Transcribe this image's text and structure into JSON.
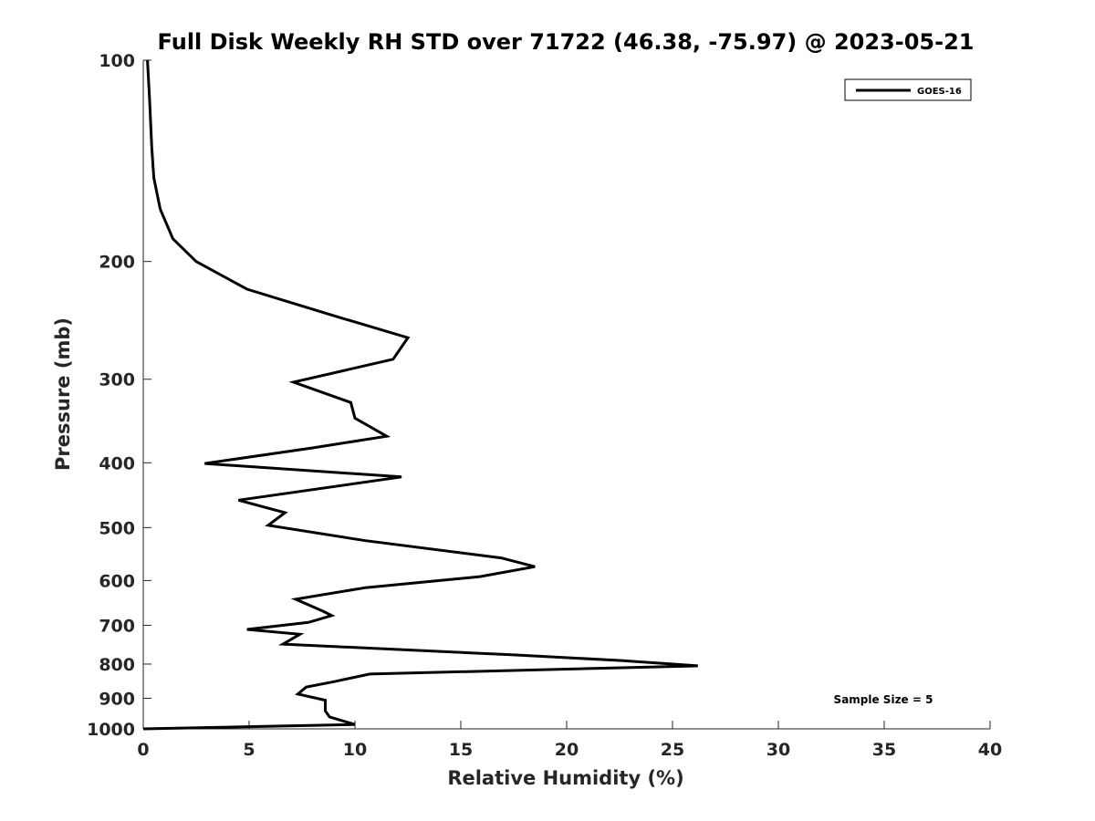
{
  "chart_data": {
    "type": "line",
    "title": "Full Disk Weekly RH STD over 71722 (46.38, -75.97) @ 2023-05-21",
    "xlabel": "Relative Humidity (%)",
    "ylabel": "Pressure (mb)",
    "xlim": [
      0,
      40
    ],
    "ylim": [
      100,
      1000
    ],
    "y_scale": "log",
    "y_reversed": true,
    "grid": false,
    "legend_position": "top-right",
    "x_ticks": [
      "0",
      "5",
      "10",
      "15",
      "20",
      "25",
      "30",
      "35",
      "40"
    ],
    "y_ticks": [
      "100",
      "200",
      "300",
      "400",
      "500",
      "600",
      "700",
      "800",
      "900",
      "1000"
    ],
    "annotation": "Sample Size = 5",
    "series": [
      {
        "name": "GOES-16",
        "color": "#000000",
        "points": [
          [
            0.2,
            100
          ],
          [
            0.3,
            115
          ],
          [
            0.4,
            135
          ],
          [
            0.5,
            150
          ],
          [
            0.8,
            167
          ],
          [
            1.4,
            185
          ],
          [
            2.5,
            200
          ],
          [
            4.9,
            220
          ],
          [
            8.8,
            240
          ],
          [
            12.5,
            260
          ],
          [
            11.8,
            280
          ],
          [
            7.1,
            303
          ],
          [
            9.8,
            325
          ],
          [
            10.0,
            343
          ],
          [
            11.5,
            365
          ],
          [
            8.0,
            380
          ],
          [
            2.9,
            401
          ],
          [
            12.2,
            420
          ],
          [
            4.5,
            455
          ],
          [
            6.7,
            475
          ],
          [
            5.9,
            496
          ],
          [
            10.5,
            523
          ],
          [
            16.9,
            555
          ],
          [
            18.5,
            572
          ],
          [
            15.9,
            592
          ],
          [
            10.5,
            615
          ],
          [
            7.2,
            640
          ],
          [
            8.5,
            667
          ],
          [
            8.9,
            677
          ],
          [
            7.8,
            693
          ],
          [
            4.9,
            710
          ],
          [
            7.4,
            722
          ],
          [
            6.6,
            747
          ],
          [
            17.5,
            775
          ],
          [
            22.5,
            790
          ],
          [
            26.2,
            805
          ],
          [
            10.7,
            828
          ],
          [
            9.0,
            850
          ],
          [
            7.7,
            866
          ],
          [
            7.3,
            887
          ],
          [
            8.6,
            906
          ],
          [
            8.6,
            940
          ],
          [
            8.8,
            960
          ],
          [
            10.0,
            985
          ],
          [
            0.0,
            1000
          ]
        ]
      }
    ]
  }
}
